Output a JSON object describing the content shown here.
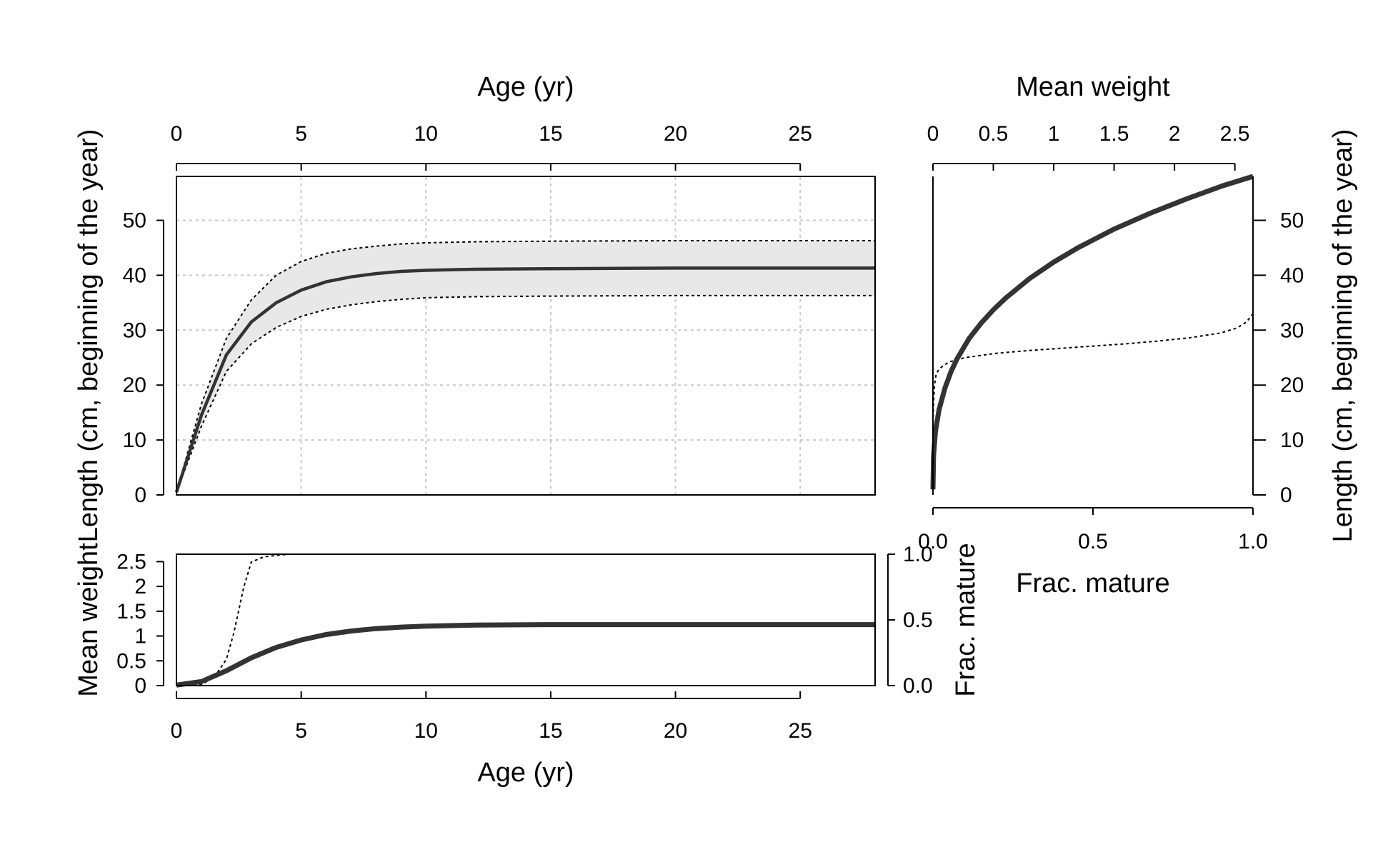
{
  "chart_data": [
    {
      "panel": "length-at-age",
      "type": "line",
      "title": "",
      "xlabel": "Age (yr)",
      "ylabel": "Length (cm, beginning of the year)",
      "xlim": [
        0,
        28
      ],
      "ylim": [
        0,
        58
      ],
      "grid": true,
      "x_ticks": [
        "0",
        "5",
        "10",
        "15",
        "20",
        "25"
      ],
      "y_ticks": [
        "0",
        "10",
        "20",
        "30",
        "40",
        "50"
      ],
      "x": [
        0,
        1,
        2,
        3,
        4,
        5,
        6,
        7,
        8,
        9,
        10,
        12,
        15,
        20,
        28
      ],
      "series": [
        {
          "role": "mean",
          "values": [
            0.5,
            14.5,
            25.5,
            31.5,
            35.0,
            37.3,
            38.8,
            39.7,
            40.3,
            40.7,
            40.9,
            41.1,
            41.2,
            41.3,
            41.3
          ]
        },
        {
          "role": "upper",
          "values": [
            0.5,
            16.5,
            28.5,
            35.5,
            40.0,
            42.5,
            44.0,
            44.8,
            45.3,
            45.7,
            45.9,
            46.1,
            46.2,
            46.3,
            46.3
          ]
        },
        {
          "role": "lower",
          "values": [
            0.5,
            12.5,
            22.5,
            27.5,
            30.5,
            32.5,
            33.8,
            34.6,
            35.2,
            35.6,
            35.9,
            36.1,
            36.2,
            36.3,
            36.3
          ]
        }
      ]
    },
    {
      "panel": "weight-maturity-at-age",
      "type": "line",
      "title": "",
      "xlabel": "Age (yr)",
      "ylabel": "Mean weight",
      "ylabel_right": "Frac. mature",
      "xlim": [
        0,
        28
      ],
      "ylim": [
        0,
        2.65
      ],
      "ylim_right": [
        0,
        1
      ],
      "grid": false,
      "x_ticks": [
        "0",
        "5",
        "10",
        "15",
        "20",
        "25"
      ],
      "y_ticks": [
        "0",
        "0.5",
        "1",
        "1.5",
        "2",
        "2.5"
      ],
      "y_ticks_right": [
        "0.0",
        "0.5",
        "1.0"
      ],
      "series": [
        {
          "role": "mean-weight",
          "x": [
            0,
            1,
            2,
            3,
            4,
            5,
            6,
            7,
            8,
            9,
            10,
            12,
            15,
            20,
            28
          ],
          "values": [
            0.01,
            0.08,
            0.3,
            0.56,
            0.77,
            0.92,
            1.03,
            1.1,
            1.15,
            1.18,
            1.2,
            1.22,
            1.23,
            1.23,
            1.23
          ]
        },
        {
          "role": "frac-mature",
          "x": [
            0,
            1,
            1.5,
            2,
            2.3,
            2.7,
            3,
            3.5,
            4,
            4.5,
            5,
            28
          ],
          "values": [
            0.0,
            0.01,
            0.06,
            0.2,
            0.4,
            0.75,
            0.94,
            0.98,
            0.99,
            1.0,
            1.0,
            1.0
          ]
        }
      ]
    },
    {
      "panel": "length-vs-weight-maturity",
      "type": "line",
      "title": "",
      "xlabel": "Frac. mature",
      "xlabel_top": "Mean weight",
      "ylabel_right": "Length (cm, beginning of the year)",
      "xlim": [
        0,
        1
      ],
      "xlim_top": [
        0,
        2.65
      ],
      "ylim": [
        0,
        58
      ],
      "grid": false,
      "x_ticks": [
        "0.0",
        "0.5",
        "1.0"
      ],
      "x_ticks_top": [
        "0",
        "0.5",
        "1",
        "1.5",
        "2",
        "2.5"
      ],
      "y_ticks": [
        "0",
        "10",
        "20",
        "30",
        "40",
        "50"
      ],
      "series": [
        {
          "role": "weight-length",
          "weight": [
            0.0,
            0.005,
            0.02,
            0.05,
            0.1,
            0.15,
            0.2,
            0.3,
            0.4,
            0.5,
            0.6,
            0.8,
            1.0,
            1.2,
            1.5,
            1.8,
            2.1,
            2.4,
            2.65
          ],
          "length": [
            1,
            7,
            11.5,
            15.5,
            19.5,
            22.5,
            24.8,
            28.5,
            31.3,
            33.7,
            35.8,
            39.4,
            42.4,
            45.0,
            48.4,
            51.3,
            53.9,
            56.3,
            58.0
          ]
        },
        {
          "role": "maturity-length",
          "frac": [
            0.0,
            0.002,
            0.005,
            0.01,
            0.02,
            0.05,
            0.1,
            0.2,
            0.3,
            0.4,
            0.5,
            0.6,
            0.7,
            0.8,
            0.9,
            0.95,
            0.98,
            1.0
          ],
          "length": [
            12,
            17,
            20,
            22,
            23,
            24.2,
            25,
            25.8,
            26.3,
            26.7,
            27.1,
            27.5,
            28.0,
            28.6,
            29.5,
            30.4,
            31.5,
            33.0
          ]
        }
      ]
    }
  ]
}
